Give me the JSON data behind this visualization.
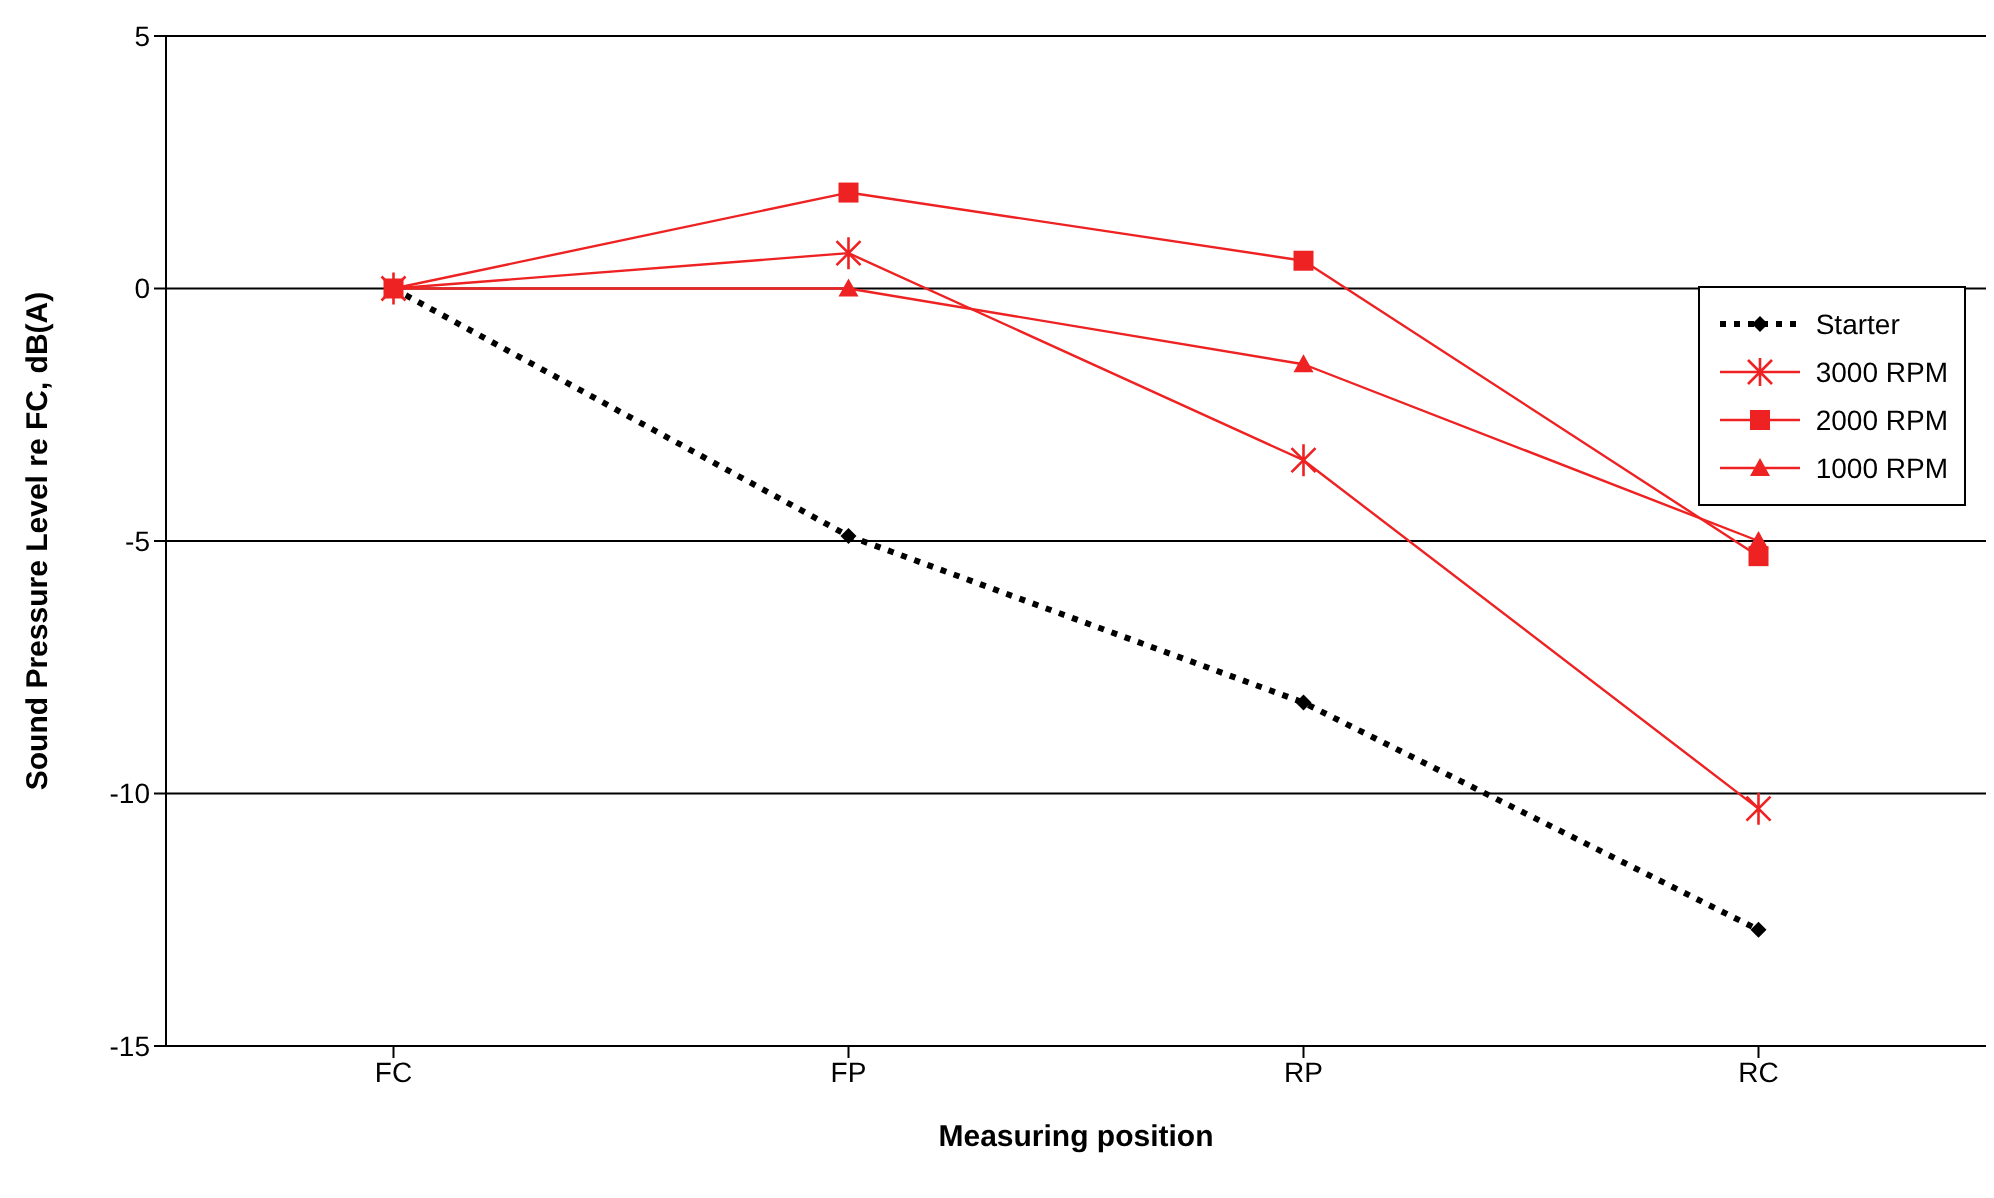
{
  "chart_data": {
    "type": "line",
    "xlabel": "Measuring position",
    "ylabel": "Sound Pressure Level re FC, dB(A)",
    "categories": [
      "FC",
      "FP",
      "RP",
      "RC"
    ],
    "series": [
      {
        "name": "Starter",
        "color": "#000000",
        "values": [
          0,
          -4.9,
          -8.2,
          -12.7
        ],
        "marker": "diamond",
        "line_style": "dotted"
      },
      {
        "name": "3000 RPM",
        "color": "#ee2222",
        "values": [
          0,
          0.7,
          -3.4,
          -10.3
        ],
        "marker": "cross",
        "line_style": "solid"
      },
      {
        "name": "2000 RPM",
        "color": "#ee2222",
        "values": [
          0,
          1.9,
          0.55,
          -5.3
        ],
        "marker": "square",
        "line_style": "solid"
      },
      {
        "name": "1000 RPM",
        "color": "#ee2222",
        "values": [
          0,
          0,
          -1.5,
          -5
        ],
        "marker": "triangle",
        "line_style": "solid"
      }
    ],
    "ylim": [
      -15,
      5
    ],
    "yticks": [
      -15,
      -10,
      -5,
      0,
      5
    ],
    "grid": "y",
    "legend": "top right"
  }
}
